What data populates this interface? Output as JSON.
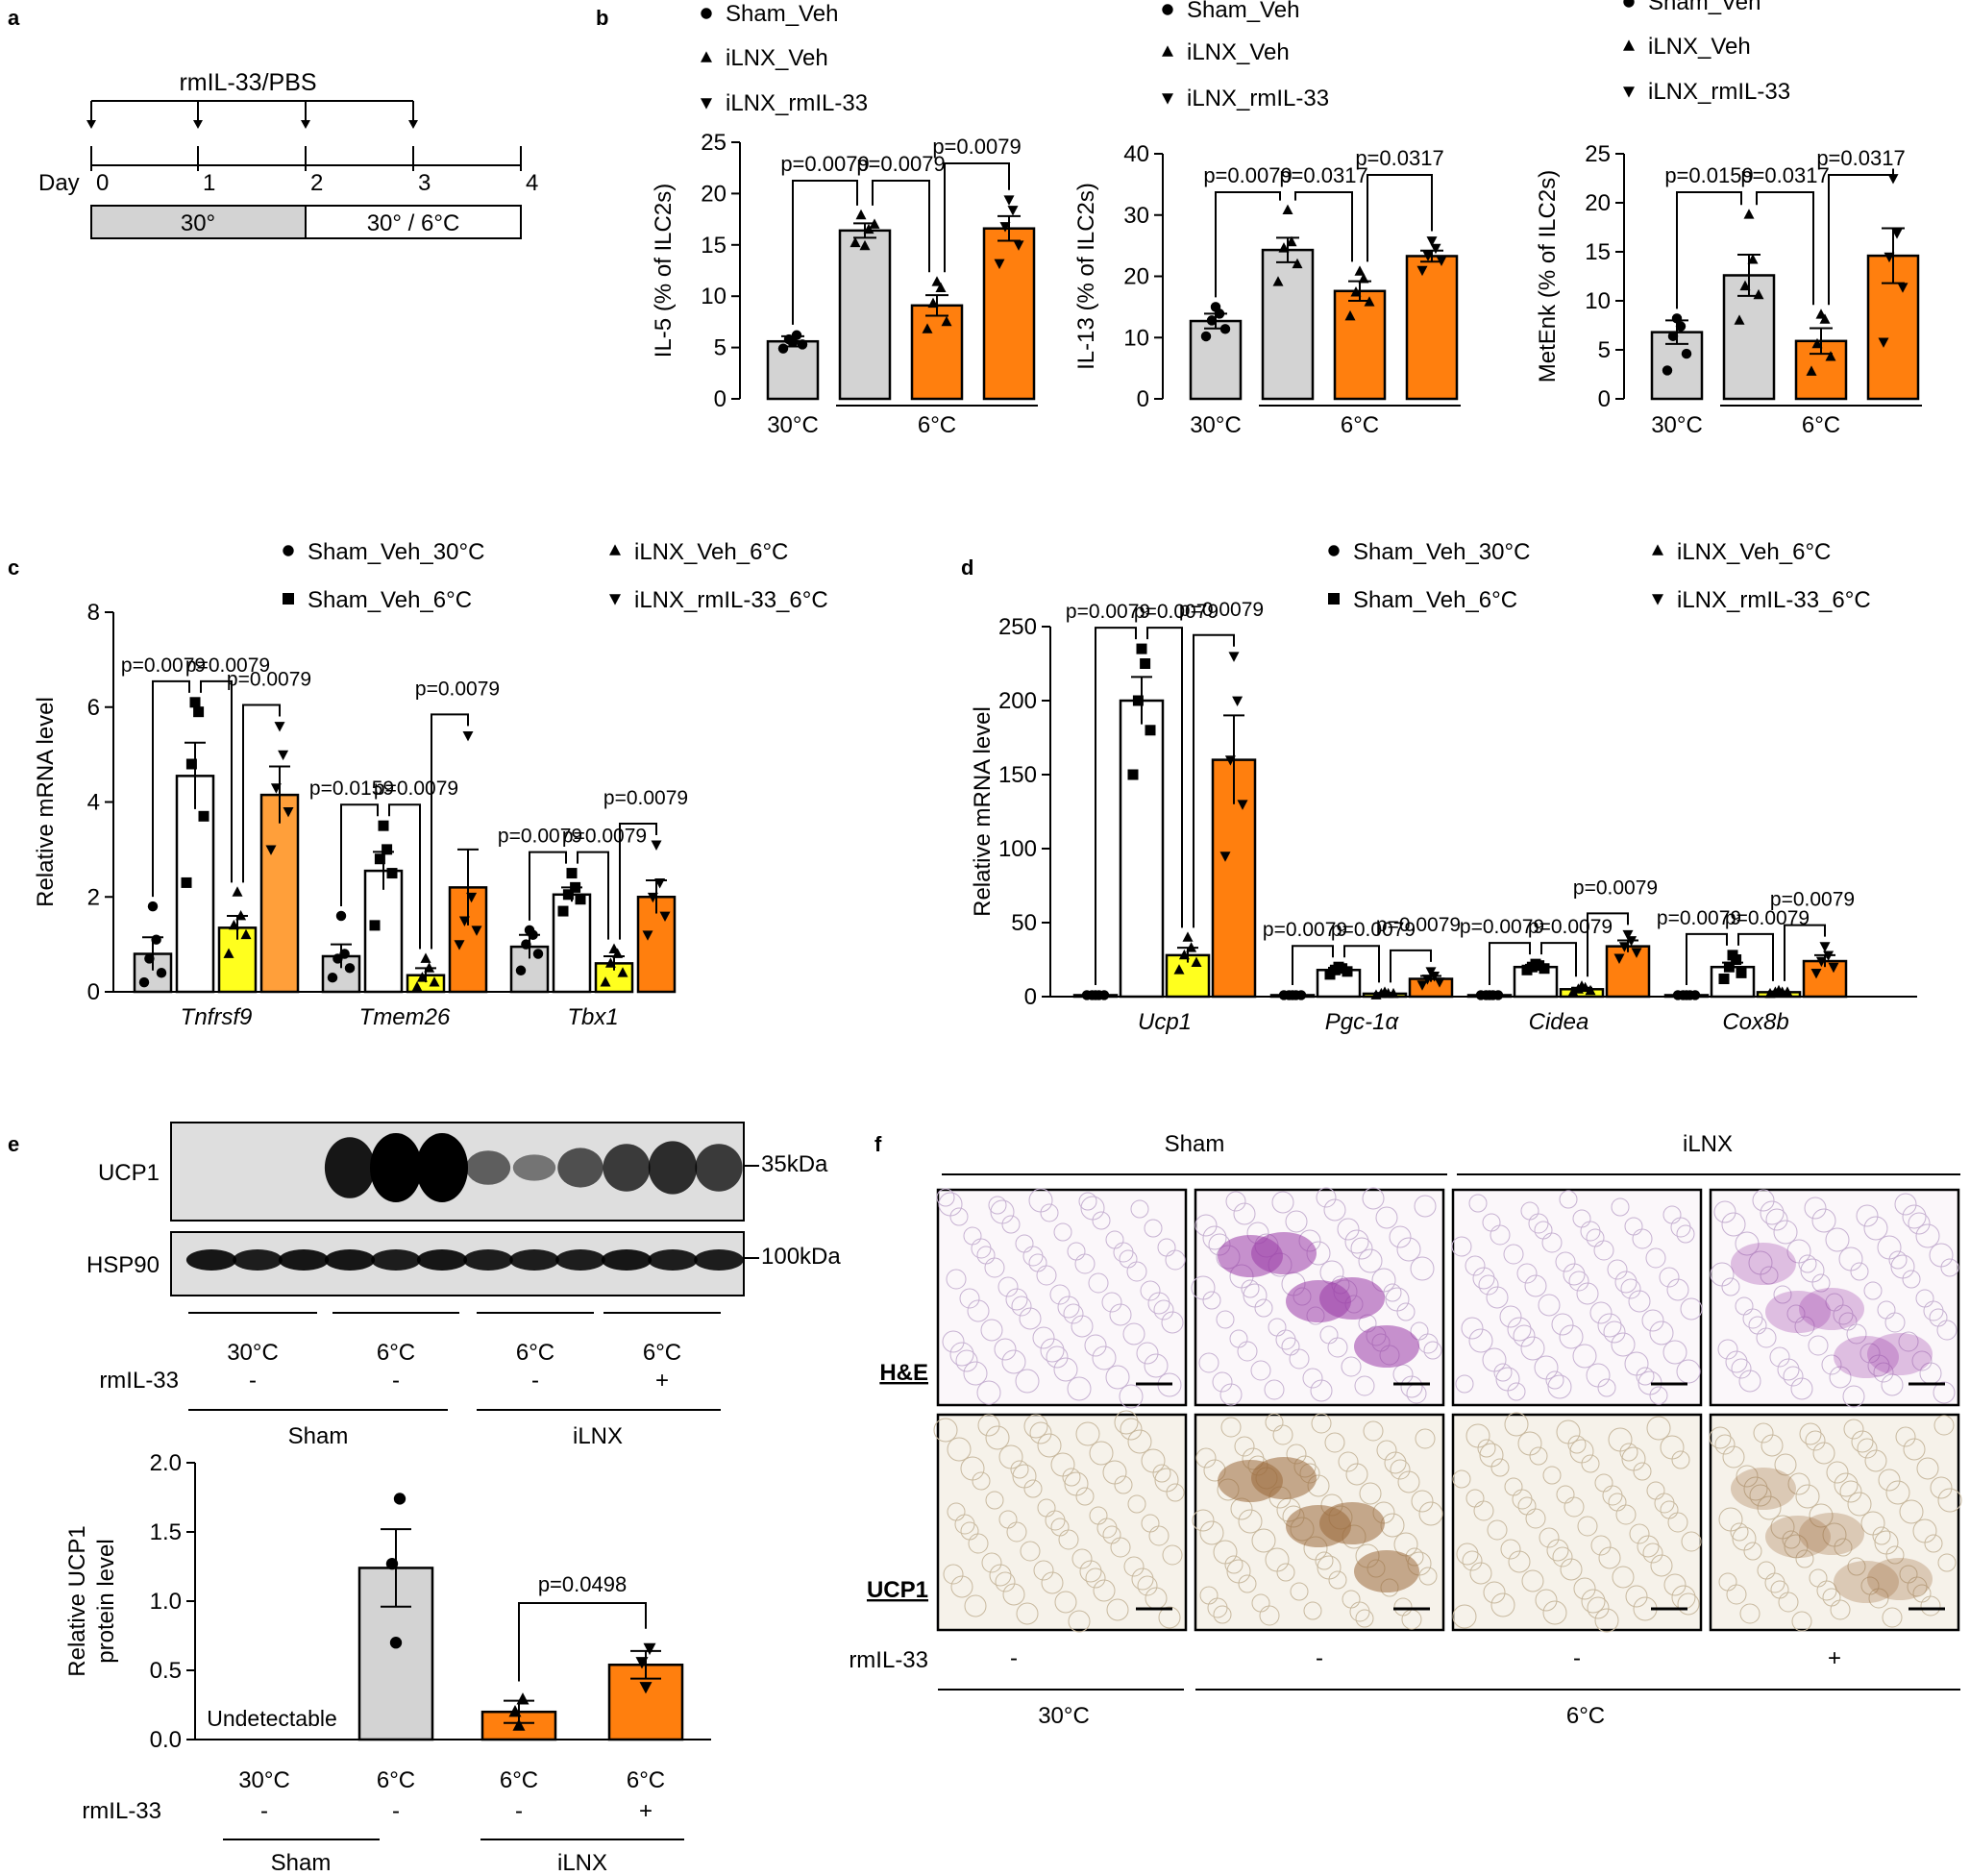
{
  "colors": {
    "gray": "#d3d3d3",
    "white": "#ffffff",
    "yellow": "#ffff1e",
    "orange": "#ff7f0e",
    "light_orange": "#ff9f3a"
  },
  "panel_letters": [
    "a",
    "b",
    "c",
    "d",
    "e",
    "f"
  ],
  "panel_a": {
    "treatment": "rmIL-33/PBS",
    "day_label": "Day",
    "days": [
      "0",
      "1",
      "2",
      "3",
      "4"
    ],
    "temp_phase1": "30°",
    "temp_phase2": "30° / 6°C"
  },
  "chart_data": [
    {
      "panel": "b",
      "type": "bar",
      "ylabel": "IL-5 (% of ILC2s)",
      "ylim": [
        0,
        25
      ],
      "yticks": [
        0,
        5,
        10,
        15,
        20,
        25
      ],
      "legend": [
        "Sham_Veh",
        "iLNX_Veh",
        "iLNX_rmIL-33"
      ],
      "groups": [
        {
          "name": "Sham_Veh",
          "value": 5.6,
          "sem": 0.5,
          "points": [
            4.9,
            5.3,
            5.8,
            6.2,
            5.5
          ]
        },
        {
          "name": "iLNX_Veh",
          "value": 16.4,
          "sem": 0.7,
          "points": [
            15.2,
            17.0,
            17.9,
            16.5,
            14.9
          ]
        },
        {
          "name": "iLNX_Veh",
          "value": 9.1,
          "sem": 1.0,
          "points": [
            6.8,
            7.5,
            9.3,
            10.8,
            11.4
          ]
        },
        {
          "name": "iLNX_rmIL-33",
          "value": 16.6,
          "sem": 1.2,
          "points": [
            13.2,
            15.0,
            16.8,
            18.4,
            19.4
          ]
        }
      ],
      "xlabels": [
        "30°C",
        "6°C"
      ],
      "comparisons": [
        {
          "from": 0,
          "to": 1,
          "label": "p=0.0079"
        },
        {
          "from": 1,
          "to": 2,
          "label": "p=0.0079"
        },
        {
          "from": 2,
          "to": 3,
          "label": "p=0.0079"
        }
      ]
    },
    {
      "panel": "b",
      "type": "bar",
      "ylabel": "IL-13 (% of ILC2s)",
      "ylim": [
        0,
        40
      ],
      "yticks": [
        0,
        10,
        20,
        30,
        40
      ],
      "legend": [
        "Sham_Veh",
        "iLNX_Veh",
        "iLNX_rmIL-33"
      ],
      "groups": [
        {
          "name": "Sham_Veh",
          "value": 12.7,
          "sem": 1.2,
          "points": [
            10.2,
            11.4,
            12.8,
            13.9,
            15.0
          ]
        },
        {
          "name": "iLNX_Veh",
          "value": 24.3,
          "sem": 2.0,
          "points": [
            19.1,
            22.0,
            24.6,
            25.6,
            30.8
          ]
        },
        {
          "name": "iLNX_Veh",
          "value": 17.6,
          "sem": 1.6,
          "points": [
            13.5,
            15.8,
            17.4,
            19.6,
            20.8
          ]
        },
        {
          "name": "iLNX_rmIL-33",
          "value": 23.3,
          "sem": 0.9,
          "points": [
            21.0,
            22.6,
            23.4,
            24.6,
            25.8
          ]
        }
      ],
      "xlabels": [
        "30°C",
        "6°C"
      ],
      "comparisons": [
        {
          "from": 0,
          "to": 1,
          "label": "p=0.0079"
        },
        {
          "from": 1,
          "to": 2,
          "label": "p=0.0317"
        },
        {
          "from": 2,
          "to": 3,
          "label": "p=0.0317"
        }
      ]
    },
    {
      "panel": "b",
      "type": "bar",
      "ylabel": "MetEnk (% of ILC2s)",
      "ylim": [
        0,
        25
      ],
      "yticks": [
        0,
        5,
        10,
        15,
        20,
        25
      ],
      "legend": [
        "Sham_Veh",
        "iLNX_Veh",
        "iLNX_rmIL-33"
      ],
      "groups": [
        {
          "name": "Sham_Veh",
          "value": 6.8,
          "sem": 1.2,
          "points": [
            2.9,
            4.6,
            6.4,
            7.4,
            8.2
          ]
        },
        {
          "name": "iLNX_Veh",
          "value": 12.6,
          "sem": 2.1,
          "points": [
            8.0,
            10.6,
            11.5,
            14.2,
            18.8
          ]
        },
        {
          "name": "iLNX_Veh",
          "value": 5.9,
          "sem": 1.3,
          "points": [
            2.8,
            4.3,
            5.6,
            8.1,
            8.6
          ]
        },
        {
          "name": "iLNX_rmIL-33",
          "value": 14.6,
          "sem": 2.8,
          "points": [
            5.8,
            11.4,
            14.5,
            16.9,
            22.5
          ]
        }
      ],
      "xlabels": [
        "30°C",
        "6°C"
      ],
      "comparisons": [
        {
          "from": 0,
          "to": 1,
          "label": "p=0.0159"
        },
        {
          "from": 1,
          "to": 2,
          "label": "p=0.0317"
        },
        {
          "from": 2,
          "to": 3,
          "label": "p=0.0317"
        }
      ]
    },
    {
      "panel": "c",
      "type": "bar",
      "ylabel": "Relative mRNA level",
      "ylim": [
        0,
        8
      ],
      "yticks": [
        0,
        2,
        4,
        6,
        8
      ],
      "legend": [
        "Sham_Veh_30°C",
        "Sham_Veh_6°C",
        "iLNX_Veh_6°C",
        "iLNX_rmIL-33_6°C"
      ],
      "categories": [
        "Tnfrsf9",
        "Tmem26",
        "Tbx1"
      ],
      "series": [
        {
          "name": "Sham_Veh_30°C",
          "values": [
            0.8,
            0.75,
            0.95
          ],
          "sems": [
            0.35,
            0.25,
            0.25
          ],
          "points": [
            [
              0.2,
              0.4,
              0.7,
              1.1,
              1.8
            ],
            [
              0.3,
              0.5,
              0.7,
              0.8,
              1.6
            ],
            [
              0.45,
              0.8,
              1.0,
              1.2,
              1.3
            ]
          ]
        },
        {
          "name": "Sham_Veh_6°C",
          "values": [
            4.55,
            2.55,
            2.05
          ],
          "sems": [
            0.7,
            0.4,
            0.15
          ],
          "points": [
            [
              2.3,
              3.7,
              4.8,
              5.9,
              6.1
            ],
            [
              1.4,
              2.5,
              2.8,
              3.0,
              3.5
            ],
            [
              1.7,
              1.95,
              2.05,
              2.2,
              2.5
            ]
          ]
        },
        {
          "name": "iLNX_Veh_6°C",
          "values": [
            1.35,
            0.35,
            0.6
          ],
          "sems": [
            0.25,
            0.15,
            0.15
          ],
          "points": [
            [
              0.8,
              1.2,
              1.4,
              1.6,
              2.1
            ],
            [
              0.1,
              0.2,
              0.3,
              0.5,
              0.7
            ],
            [
              0.2,
              0.4,
              0.6,
              0.8,
              0.9
            ]
          ]
        },
        {
          "name": "iLNX_rmIL-33_6°C",
          "values": [
            4.15,
            2.2,
            2.0
          ],
          "sems": [
            0.6,
            0.8,
            0.35
          ],
          "points": [
            [
              3.0,
              3.8,
              4.3,
              5.0,
              5.6
            ],
            [
              1.0,
              1.3,
              1.5,
              2.0,
              5.4
            ],
            [
              1.2,
              1.6,
              2.0,
              2.3,
              3.1
            ]
          ]
        }
      ],
      "comparisons": [
        {
          "category": 0,
          "from": 0,
          "to": 1,
          "label": "p=0.0079"
        },
        {
          "category": 0,
          "from": 1,
          "to": 2,
          "label": "p=0.0079"
        },
        {
          "category": 0,
          "from": 2,
          "to": 3,
          "label": "p=0.0079"
        },
        {
          "category": 1,
          "from": 0,
          "to": 1,
          "label": "p=0.0159"
        },
        {
          "category": 1,
          "from": 1,
          "to": 2,
          "label": "p=0.0079"
        },
        {
          "category": 1,
          "from": 2,
          "to": 3,
          "label": "p=0.0079"
        },
        {
          "category": 2,
          "from": 0,
          "to": 1,
          "label": "p=0.0079"
        },
        {
          "category": 2,
          "from": 1,
          "to": 2,
          "label": "p=0.0079"
        },
        {
          "category": 2,
          "from": 2,
          "to": 3,
          "label": "p=0.0079"
        }
      ]
    },
    {
      "panel": "d",
      "type": "bar",
      "ylabel": "Relative mRNA level",
      "ylim": [
        0,
        250
      ],
      "yticks": [
        0,
        50,
        100,
        150,
        200,
        250
      ],
      "legend": [
        "Sham_Veh_30°C",
        "Sham_Veh_6°C",
        "iLNX_Veh_6°C",
        "iLNX_rmIL-33_6°C"
      ],
      "categories": [
        "Ucp1",
        "Pgc-1α",
        "Cidea",
        "Cox8b"
      ],
      "series": [
        {
          "name": "Sham_Veh_30°C",
          "values": [
            1,
            1,
            1,
            1
          ],
          "sems": [
            0.3,
            0.3,
            0.3,
            0.3
          ],
          "points": [
            [
              1,
              1,
              1,
              1,
              1
            ],
            [
              1,
              1,
              1,
              1,
              1
            ],
            [
              1,
              1,
              1,
              1,
              1
            ],
            [
              1,
              1,
              1,
              1,
              1
            ]
          ]
        },
        {
          "name": "Sham_Veh_6°C",
          "values": [
            200,
            18,
            20,
            20
          ],
          "sems": [
            16,
            1.5,
            1.5,
            3
          ],
          "points": [
            [
              150,
              180,
              200,
              225,
              235
            ],
            [
              15,
              17,
              18,
              19,
              20
            ],
            [
              18,
              19,
              20,
              21,
              22
            ],
            [
              12,
              16,
              20,
              25,
              28
            ]
          ]
        },
        {
          "name": "iLNX_Veh_6°C",
          "values": [
            28,
            2,
            5,
            3
          ],
          "sems": [
            5,
            0.5,
            1,
            0.5
          ],
          "points": [
            [
              18,
              23,
              28,
              33,
              40
            ],
            [
              1,
              2,
              2,
              2,
              3
            ],
            [
              3,
              4,
              5,
              6,
              7
            ],
            [
              2,
              3,
              3,
              3,
              4
            ]
          ]
        },
        {
          "name": "iLNX_rmIL-33_6°C",
          "values": [
            160,
            12,
            34,
            24
          ],
          "sems": [
            30,
            2,
            4,
            4
          ],
          "points": [
            [
              95,
              130,
              160,
              200,
              230
            ],
            [
              8,
              10,
              12,
              14,
              17
            ],
            [
              26,
              30,
              34,
              38,
              42
            ],
            [
              16,
              20,
              24,
              28,
              34
            ]
          ]
        }
      ],
      "comparisons": [
        {
          "category": 0,
          "from": 0,
          "to": 1,
          "label": "p=0.0079"
        },
        {
          "category": 0,
          "from": 1,
          "to": 2,
          "label": "p=0.0079"
        },
        {
          "category": 0,
          "from": 2,
          "to": 3,
          "label": "p=0.0079"
        },
        {
          "category": 1,
          "from": 0,
          "to": 1,
          "label": "p=0.0079"
        },
        {
          "category": 1,
          "from": 1,
          "to": 2,
          "label": "p=0.0079"
        },
        {
          "category": 1,
          "from": 2,
          "to": 3,
          "label": "p=0.0079"
        },
        {
          "category": 2,
          "from": 0,
          "to": 1,
          "label": "p=0.0079"
        },
        {
          "category": 2,
          "from": 1,
          "to": 2,
          "label": "p=0.0079"
        },
        {
          "category": 2,
          "from": 2,
          "to": 3,
          "label": "p=0.0079"
        },
        {
          "category": 3,
          "from": 0,
          "to": 1,
          "label": "p=0.0079"
        },
        {
          "category": 3,
          "from": 1,
          "to": 2,
          "label": "p=0.0079"
        },
        {
          "category": 3,
          "from": 2,
          "to": 3,
          "label": "p=0.0079"
        }
      ]
    },
    {
      "panel": "e",
      "type": "bar",
      "ylabel": "Relative UCP1 protein level",
      "ylim": [
        0,
        2.0
      ],
      "yticks": [
        "0.0",
        "0.5",
        "1.0",
        "1.5",
        "2.0"
      ],
      "groups": [
        {
          "temp": "30°C",
          "rmil33": "-",
          "value": null,
          "note": "Undetectable"
        },
        {
          "temp": "6°C",
          "rmil33": "-",
          "value": 1.24,
          "sem": 0.28,
          "points": [
            0.7,
            1.27,
            1.74
          ]
        },
        {
          "temp": "6°C",
          "rmil33": "-",
          "value": 0.2,
          "sem": 0.08,
          "points": [
            0.1,
            0.2,
            0.29
          ]
        },
        {
          "temp": "6°C",
          "rmil33": "+",
          "value": 0.54,
          "sem": 0.1,
          "points": [
            0.38,
            0.56,
            0.66
          ]
        }
      ],
      "rmil33_label": "rmIL-33",
      "sham_label": "Sham",
      "ilnx_label": "iLNX",
      "comparisons": [
        {
          "from": 2,
          "to": 3,
          "label": "p=0.0498"
        }
      ]
    }
  ],
  "panel_e_blot": {
    "rows": [
      {
        "label": "UCP1",
        "size": "35kDa",
        "intensities": [
          0.0,
          0.0,
          0.0,
          0.85,
          1.0,
          1.0,
          0.35,
          0.2,
          0.45,
          0.6,
          0.7,
          0.6
        ]
      },
      {
        "label": "HSP90",
        "size": "100kDa",
        "intensities": [
          0.85,
          0.8,
          0.85,
          0.85,
          0.8,
          0.85,
          0.8,
          0.8,
          0.8,
          0.85,
          0.8,
          0.8
        ]
      }
    ],
    "temps": [
      "30°C",
      "6°C",
      "6°C",
      "6°C"
    ],
    "rmil33_label": "rmIL-33",
    "rmil33": [
      "-",
      "-",
      "-",
      "+"
    ],
    "groups": [
      "Sham",
      "iLNX"
    ]
  },
  "panel_f": {
    "col_groups": [
      "Sham",
      "iLNX"
    ],
    "rows": [
      "H&E",
      "UCP1"
    ],
    "rmil33_label": "rmIL-33",
    "rmil33": [
      "-",
      "-",
      "-",
      "+"
    ],
    "temps": [
      "30°C",
      "6°C"
    ]
  }
}
